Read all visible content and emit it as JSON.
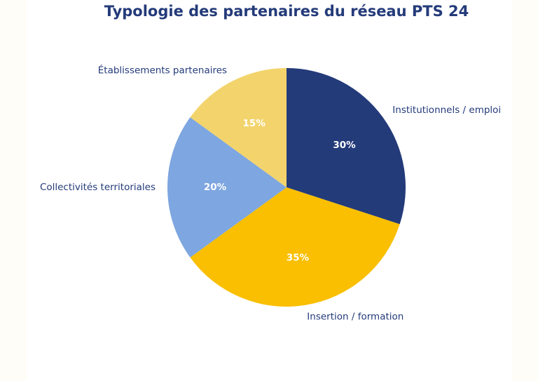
{
  "chart_data": {
    "type": "pie",
    "title": "Typologie des partenaires du réseau PTS 24",
    "slices": [
      {
        "label": "Institutionnels / emploi",
        "value": 30,
        "pct_label": "30%",
        "color": "#243b7a"
      },
      {
        "label": "Insertion / formation",
        "value": 35,
        "pct_label": "35%",
        "color": "#f9bf00"
      },
      {
        "label": "Collectivités territoriales",
        "value": 20,
        "pct_label": "20%",
        "color": "#7ea6e0"
      },
      {
        "label": "Établissements partenaires",
        "value": 15,
        "pct_label": "15%",
        "color": "#f3d46c"
      }
    ],
    "start_angle": "90° (12 o'clock)",
    "direction": "clockwise"
  }
}
